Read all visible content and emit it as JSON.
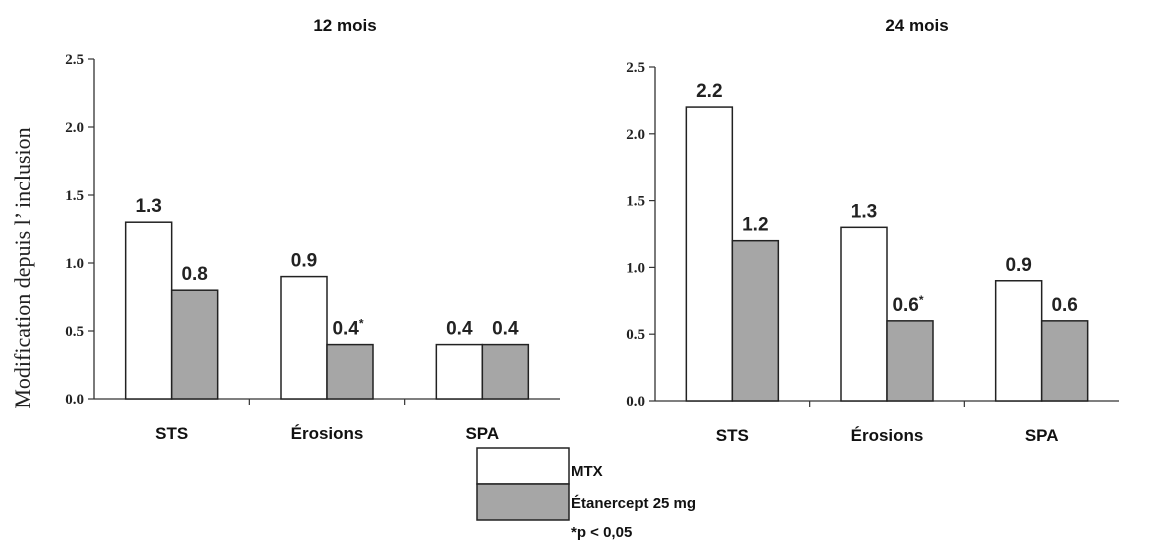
{
  "y_axis_label": "Modification depuis l’     inclusion",
  "legend": {
    "items": [
      {
        "label": "MTX",
        "color": "#ffffff"
      },
      {
        "label": "Étanercept 25 mg",
        "color": "#a6a6a6"
      }
    ],
    "note": "*p < 0,05"
  },
  "chart_data": [
    {
      "type": "bar",
      "title": "12 mois",
      "categories": [
        "STS",
        "Érosions",
        "SPA"
      ],
      "series": [
        {
          "name": "MTX",
          "values": [
            1.3,
            0.9,
            0.4
          ],
          "labels": [
            "1.3",
            "0.9",
            "0.4"
          ],
          "color": "#ffffff"
        },
        {
          "name": "Étanercept 25 mg",
          "values": [
            0.8,
            0.4,
            0.4
          ],
          "labels": [
            "0.8",
            "0.4*",
            "0.4"
          ],
          "color": "#a6a6a6"
        }
      ],
      "yticks": [
        "0.0",
        "0.5",
        "1.0",
        "1.5",
        "2.0",
        "2.5"
      ],
      "ylim": [
        0,
        2.5
      ],
      "grid": false
    },
    {
      "type": "bar",
      "title": "24 mois",
      "categories": [
        "STS",
        "Érosions",
        "SPA"
      ],
      "series": [
        {
          "name": "MTX",
          "values": [
            2.2,
            1.3,
            0.9
          ],
          "labels": [
            "2.2",
            "1.3",
            "0.9"
          ],
          "color": "#ffffff"
        },
        {
          "name": "Étanercept 25 mg",
          "values": [
            1.2,
            0.6,
            0.6
          ],
          "labels": [
            "1.2",
            "0.6*",
            "0.6"
          ],
          "color": "#a6a6a6"
        }
      ],
      "yticks": [
        "0.0",
        "0.5",
        "1.0",
        "1.5",
        "2.0",
        "2.5"
      ],
      "ylim": [
        0,
        2.5
      ],
      "grid": false
    }
  ]
}
